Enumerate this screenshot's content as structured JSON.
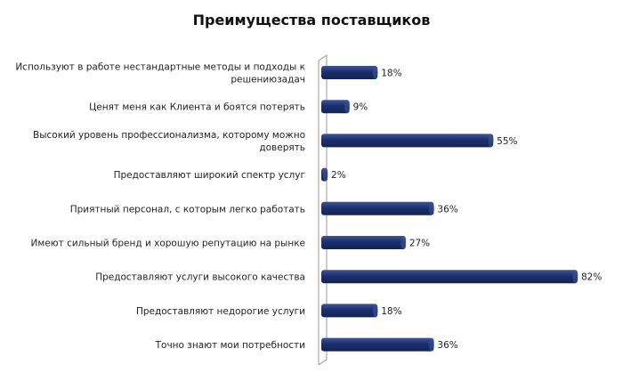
{
  "chart_data": {
    "type": "bar",
    "orientation": "horizontal",
    "title": "Преимущества поставщиков",
    "categories": [
      "Используют в работе нестандартные методы и подходы к решениюзадач",
      "Ценят меня как Клиента и боятся потерять",
      "Высокий уровень профессионализма, которому можно доверять",
      "Предоставляют широкий спектр услуг",
      "Приятный персонал, с которым легко работать",
      "Имеют сильный бренд и хорошую репутацию на рынке",
      "Предоставляют услуги высокого качества",
      "Предоставляют недорогие услуги",
      "Точно знают мои потребности"
    ],
    "category_lines": [
      [
        "Используют в работе нестандартные методы и подходы к",
        "решениюзадач"
      ],
      [
        "Ценят меня как Клиента и боятся потерять"
      ],
      [
        "Высокий уровень профессионализма, которому можно",
        "доверять"
      ],
      [
        "Предоставляют широкий спектр услуг"
      ],
      [
        "Приятный персонал, с которым легко работать"
      ],
      [
        "Имеют сильный бренд и хорошую репутацию на рынке"
      ],
      [
        "Предоставляют услуги высокого качества"
      ],
      [
        "Предоставляют недорогие услуги"
      ],
      [
        "Точно знают мои потребности"
      ]
    ],
    "values": [
      18,
      9,
      55,
      2,
      36,
      27,
      82,
      18,
      36
    ],
    "data_labels": [
      "18%",
      "9%",
      "55%",
      "2%",
      "36%",
      "27%",
      "82%",
      "18%",
      "36%"
    ],
    "unit": "%",
    "xlim": [
      0,
      82
    ],
    "grid": false,
    "legend": "none",
    "bar_color": "#1c2f6b",
    "bar_highlight_color": "#3d55a0",
    "axis_color": "#999999"
  }
}
